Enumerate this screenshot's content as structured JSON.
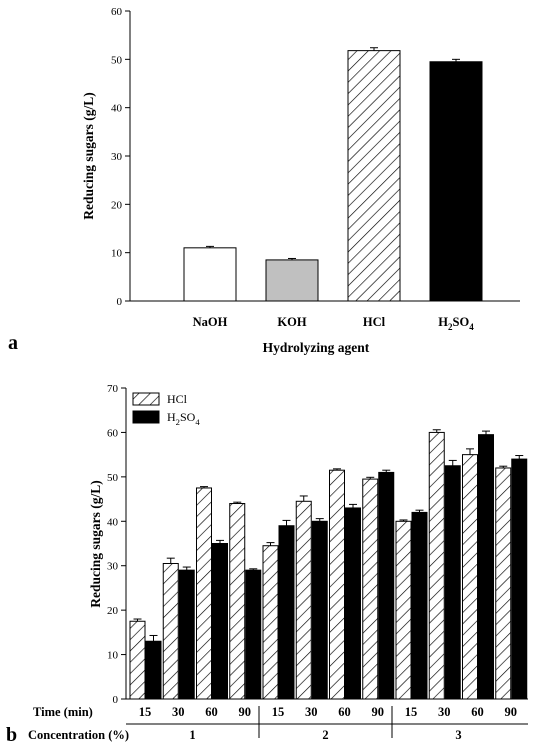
{
  "colors": {
    "naoh_fill": "#ffffff",
    "koh_fill": "#c0c0c0",
    "hcl_pattern": "diagonal-hatch",
    "h2so4_fill": "#000000",
    "axis": "#000000"
  },
  "chart_data": [
    {
      "panel_label": "a",
      "type": "bar",
      "categories": [
        {
          "base": "NaOH",
          "sub1": "",
          "tail": "",
          "sub2": ""
        },
        {
          "base": "KOH",
          "sub1": "",
          "tail": "",
          "sub2": ""
        },
        {
          "base": "HCl",
          "sub1": "",
          "tail": "",
          "sub2": ""
        },
        {
          "base": "H",
          "sub1": "2",
          "tail": "SO",
          "sub2": "4"
        }
      ],
      "values": [
        11.0,
        8.5,
        51.8,
        49.5
      ],
      "errors": [
        0.3,
        0.3,
        0.6,
        0.5
      ],
      "fills": [
        "white",
        "gray",
        "hatch",
        "black"
      ],
      "xlabel": "Hydrolyzing agent",
      "ylabel": "Reducing sugars (g/L)",
      "ylim": [
        0,
        60
      ],
      "yticks": [
        0,
        10,
        20,
        30,
        40,
        50,
        60
      ],
      "grid": false
    },
    {
      "panel_label": "b",
      "type": "bar",
      "ylabel": "Reducing sugars (g/L)",
      "ylim": [
        0,
        70
      ],
      "yticks": [
        0,
        10,
        20,
        30,
        40,
        50,
        60,
        70
      ],
      "grid": false,
      "legend_position": "top-left",
      "row_labels": {
        "time": "Time (min)",
        "concentration": "Concentration (%)"
      },
      "concentrations": [
        "1",
        "2",
        "3"
      ],
      "times": [
        "15",
        "30",
        "60",
        "90"
      ],
      "series": [
        {
          "name_base": "HCl",
          "name_sub": "",
          "fill": "hatch",
          "values": [
            17.5,
            30.5,
            47.5,
            44.0,
            34.5,
            44.5,
            51.5,
            49.5,
            40.0,
            60.0,
            55.0,
            52.0
          ],
          "errors": [
            0.5,
            1.2,
            0.3,
            0.3,
            0.7,
            1.2,
            0.3,
            0.4,
            0.3,
            0.6,
            1.3,
            0.4
          ]
        },
        {
          "name_base": "H",
          "name_sub": "2",
          "name_tail": "SO",
          "name_sub2": "4",
          "fill": "black",
          "values": [
            13.0,
            29.0,
            35.0,
            29.0,
            39.0,
            40.0,
            43.0,
            51.0,
            42.0,
            52.5,
            59.5,
            54.0
          ],
          "errors": [
            1.3,
            0.7,
            0.7,
            0.3,
            1.2,
            0.6,
            0.8,
            0.5,
            0.5,
            1.2,
            0.8,
            0.8
          ]
        }
      ]
    }
  ]
}
